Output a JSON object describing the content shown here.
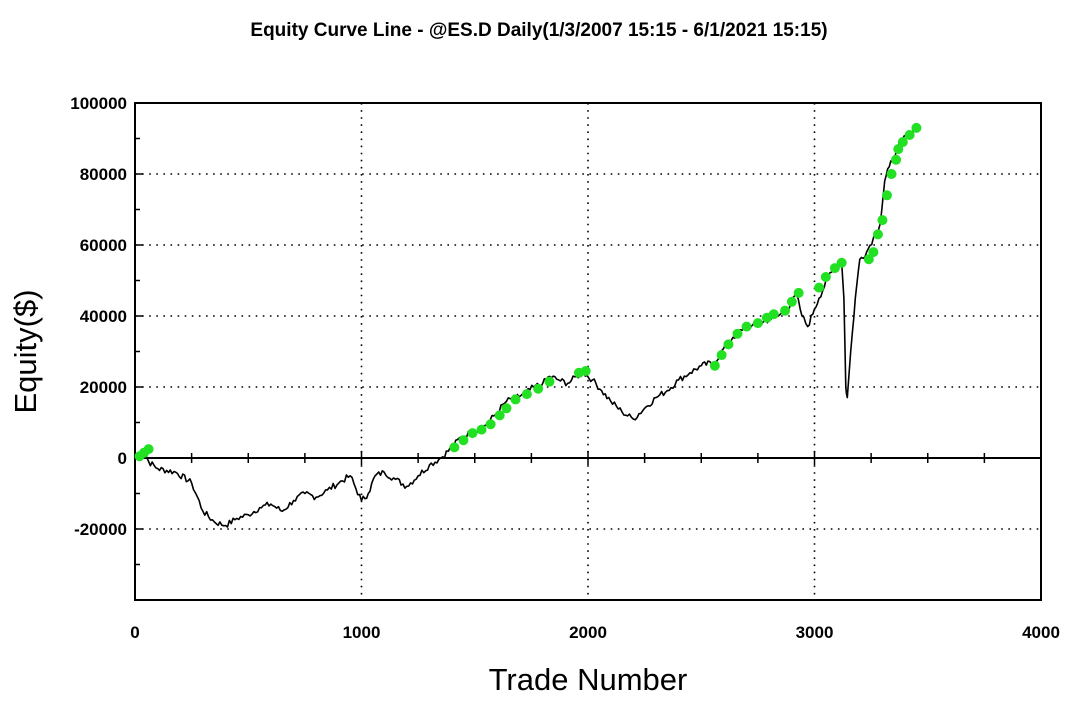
{
  "chart_data": {
    "type": "line",
    "title": "Equity Curve Line - @ES.D Daily(1/3/2007 15:15 - 6/1/2021 15:15)",
    "xlabel": "Trade Number",
    "ylabel": "Equity($)",
    "xlim": [
      0,
      4000
    ],
    "ylim": [
      -40000,
      100000
    ],
    "xticks": [
      0,
      1000,
      2000,
      3000,
      4000
    ],
    "xtick_labels": [
      "0",
      "1000",
      "2000",
      "3000",
      "4000"
    ],
    "yticks": [
      -20000,
      0,
      20000,
      40000,
      60000,
      80000,
      100000
    ],
    "ytick_labels": [
      "-20000",
      "0",
      "20000",
      "40000",
      "60000",
      "80000",
      "100000"
    ],
    "grid": true,
    "colors": {
      "line": "#000000",
      "new_high_marker": "#22e022"
    },
    "series": [
      {
        "x": [
          0,
          40,
          60,
          100,
          180,
          250,
          300,
          350,
          400,
          450,
          500,
          550,
          600,
          650,
          700,
          750,
          800,
          850,
          900,
          950,
          1000,
          1030,
          1060,
          1100,
          1150,
          1200,
          1250,
          1300,
          1350,
          1400,
          1440,
          1480,
          1520,
          1560,
          1600,
          1640,
          1680,
          1720,
          1760,
          1800,
          1830,
          1870,
          1910,
          1950,
          1980,
          2020,
          2060,
          2100,
          2150,
          2200,
          2250,
          2300,
          2350,
          2400,
          2450,
          2500,
          2560,
          2600,
          2640,
          2680,
          2720,
          2760,
          2800,
          2840,
          2880,
          2920,
          2945,
          2970,
          3000,
          3020,
          3060,
          3100,
          3120,
          3130,
          3138,
          3145,
          3160,
          3180,
          3200,
          3230,
          3260,
          3290,
          3310,
          3330,
          3350,
          3370,
          3390,
          3410,
          3430,
          3460
        ],
        "y": [
          0,
          2000,
          -1000,
          -3000,
          -4000,
          -7000,
          -15000,
          -18000,
          -19000,
          -17000,
          -16000,
          -14000,
          -13000,
          -15000,
          -12000,
          -10000,
          -11000,
          -9000,
          -7000,
          -5000,
          -12000,
          -10000,
          -5000,
          -4000,
          -6000,
          -8000,
          -5000,
          -2000,
          0,
          3000,
          6000,
          7000,
          8000,
          10000,
          13000,
          16000,
          17000,
          18000,
          20000,
          21000,
          23000,
          22000,
          21000,
          23000,
          24000,
          22000,
          19000,
          16000,
          13000,
          11000,
          14000,
          17000,
          19000,
          22000,
          24000,
          26000,
          27000,
          31000,
          34000,
          36000,
          37000,
          38000,
          39000,
          40000,
          42000,
          46000,
          40000,
          37000,
          42000,
          45000,
          51000,
          54000,
          55000,
          45000,
          20000,
          17000,
          30000,
          45000,
          56000,
          58000,
          62000,
          66000,
          78000,
          82000,
          85000,
          88000,
          90000,
          91000,
          92000,
          93000
        ]
      }
    ],
    "new_high_markers": {
      "x": [
        20,
        40,
        60,
        1410,
        1450,
        1490,
        1530,
        1570,
        1610,
        1640,
        1680,
        1730,
        1780,
        1830,
        1960,
        1990,
        2560,
        2590,
        2620,
        2660,
        2700,
        2750,
        2790,
        2820,
        2870,
        2900,
        2930,
        3020,
        3050,
        3090,
        3120,
        3240,
        3260,
        3280,
        3300,
        3320,
        3340,
        3360,
        3370,
        3390,
        3420,
        3450
      ],
      "y": [
        500,
        1500,
        2500,
        3000,
        5000,
        7000,
        8000,
        9500,
        12000,
        14000,
        16500,
        18000,
        19500,
        21500,
        24000,
        24500,
        26000,
        29000,
        32000,
        35000,
        37000,
        38000,
        39500,
        40500,
        41500,
        44000,
        46500,
        48000,
        51000,
        53500,
        55000,
        56000,
        58000,
        63000,
        67000,
        74000,
        80000,
        84000,
        87000,
        89000,
        91000,
        93000
      ]
    }
  }
}
